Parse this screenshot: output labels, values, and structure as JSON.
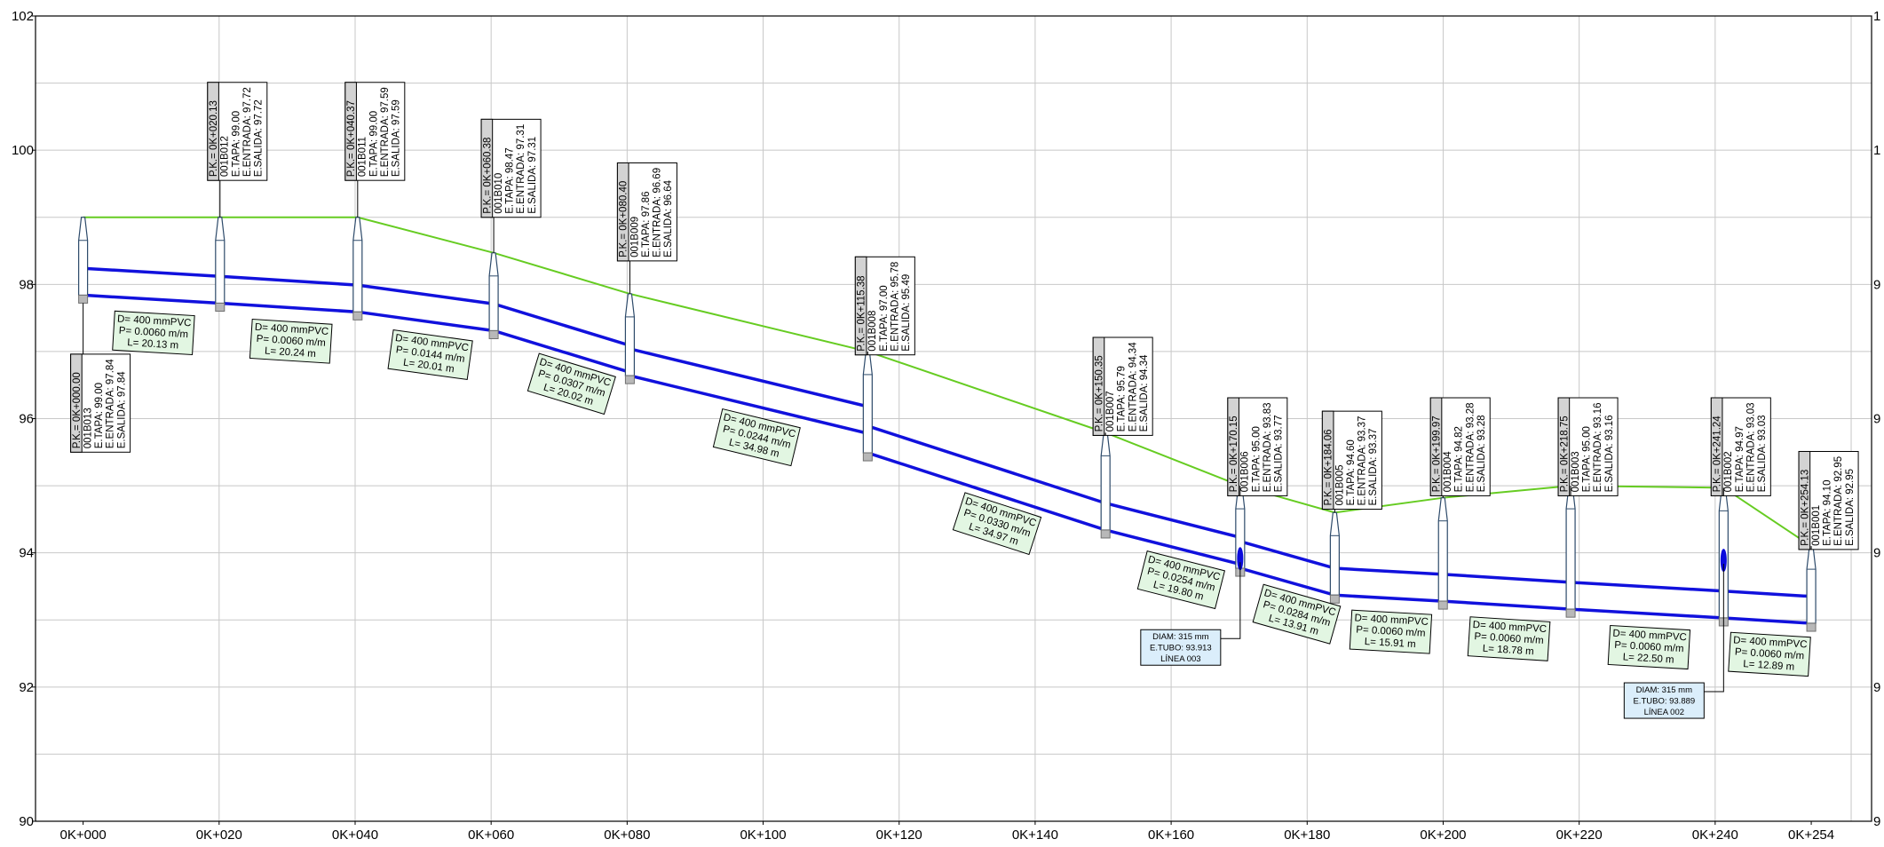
{
  "chart_data": {
    "type": "profile",
    "x_unit": "m",
    "ylim": [
      90,
      102
    ],
    "y_ticks": [
      90,
      92,
      94,
      96,
      98,
      100,
      102
    ],
    "y_tick_labels_left": [
      "90",
      "92",
      "94",
      "96",
      "98",
      "100",
      "102"
    ],
    "y_tick_labels_right": [
      "9",
      "9",
      "9",
      "9",
      "9",
      "1",
      "1"
    ],
    "x_range": [
      -7,
      263
    ],
    "x_ticks": [
      {
        "x": 0,
        "label": "0K+000"
      },
      {
        "x": 20,
        "label": "0K+020"
      },
      {
        "x": 40,
        "label": "0K+040"
      },
      {
        "x": 60,
        "label": "0K+060"
      },
      {
        "x": 80,
        "label": "0K+080"
      },
      {
        "x": 100,
        "label": "0K+100"
      },
      {
        "x": 120,
        "label": "0K+120"
      },
      {
        "x": 140,
        "label": "0K+140"
      },
      {
        "x": 160,
        "label": "0K+160"
      },
      {
        "x": 180,
        "label": "0K+180"
      },
      {
        "x": 200,
        "label": "0K+200"
      },
      {
        "x": 220,
        "label": "0K+220"
      },
      {
        "x": 240,
        "label": "0K+240"
      },
      {
        "x": 254.13,
        "label": "0K+254"
      }
    ],
    "manholes": [
      {
        "id": "001B013",
        "pk": 0.0,
        "tapa": 99.0,
        "entrada": 97.84,
        "salida": 97.84,
        "lines": [
          "P.K.= 0K+000.00",
          "001B013",
          "E.TAPA: 99.00",
          "E.ENTRADA: 97.84",
          "E.SALIDA: 97.84"
        ]
      },
      {
        "id": "001B012",
        "pk": 20.13,
        "tapa": 99.0,
        "entrada": 97.72,
        "salida": 97.72,
        "lines": [
          "P.K.= 0K+020.13",
          "001B012",
          "E.TAPA: 99.00",
          "E.ENTRADA: 97.72",
          "E.SALIDA: 97.72"
        ]
      },
      {
        "id": "001B011",
        "pk": 40.37,
        "tapa": 99.0,
        "entrada": 97.59,
        "salida": 97.59,
        "lines": [
          "P.K.= 0K+040.37",
          "001B011",
          "E.TAPA: 99.00",
          "E.ENTRADA: 97.59",
          "E.SALIDA: 97.59"
        ]
      },
      {
        "id": "001B010",
        "pk": 60.38,
        "tapa": 98.47,
        "entrada": 97.31,
        "salida": 97.31,
        "lines": [
          "P.K.= 0K+060.38",
          "001B010",
          "E.TAPA: 98.47",
          "E.ENTRADA: 97.31",
          "E.SALIDA: 97.31"
        ]
      },
      {
        "id": "001B009",
        "pk": 80.4,
        "tapa": 97.86,
        "entrada": 96.69,
        "salida": 96.64,
        "lines": [
          "P.K.= 0K+080.40",
          "001B009",
          "E.TAPA: 97.86",
          "E.ENTRADA: 96.69",
          "E.SALIDA: 96.64"
        ]
      },
      {
        "id": "001B008",
        "pk": 115.38,
        "tapa": 97.0,
        "entrada": 95.78,
        "salida": 95.49,
        "lines": [
          "P.K.= 0K+115.38",
          "001B008",
          "E.TAPA: 97.00",
          "E.ENTRADA: 95.78",
          "E.SALIDA: 95.49"
        ]
      },
      {
        "id": "001B007",
        "pk": 150.35,
        "tapa": 95.79,
        "entrada": 94.34,
        "salida": 94.34,
        "lines": [
          "P.K.= 0K+150.35",
          "001B007",
          "E.TAPA: 95.79",
          "E.ENTRADA: 94.34",
          "E.SALIDA: 94.34"
        ]
      },
      {
        "id": "001B006",
        "pk": 170.15,
        "tapa": 95.0,
        "entrada": 93.83,
        "salida": 93.77,
        "lines": [
          "P.K.= 0K+170.15",
          "001B006",
          "E.TAPA: 95.00",
          "E.ENTRADA: 93.83",
          "E.SALIDA: 93.77"
        ]
      },
      {
        "id": "001B005",
        "pk": 184.06,
        "tapa": 94.6,
        "entrada": 93.37,
        "salida": 93.37,
        "lines": [
          "P.K.= 0K+184.06",
          "001B005",
          "E.TAPA: 94.60",
          "E.ENTRADA: 93.37",
          "E.SALIDA: 93.37"
        ]
      },
      {
        "id": "001B004",
        "pk": 199.97,
        "tapa": 94.82,
        "entrada": 93.28,
        "salida": 93.28,
        "lines": [
          "P.K.= 0K+199.97",
          "001B004",
          "E.TAPA: 94.82",
          "E.ENTRADA: 93.28",
          "E.SALIDA: 93.28"
        ]
      },
      {
        "id": "001B003",
        "pk": 218.75,
        "tapa": 95.0,
        "entrada": 93.16,
        "salida": 93.16,
        "lines": [
          "P.K.= 0K+218.75",
          "001B003",
          "E.TAPA: 95.00",
          "E.ENTRADA: 93.16",
          "E.SALIDA: 93.16"
        ]
      },
      {
        "id": "001B002",
        "pk": 241.24,
        "tapa": 94.97,
        "entrada": 93.03,
        "salida": 93.03,
        "lines": [
          "P.K.= 0K+241.24",
          "001B002",
          "E.TAPA: 94.97",
          "E.ENTRADA: 93.03",
          "E.SALIDA: 93.03"
        ]
      },
      {
        "id": "001B001",
        "pk": 254.13,
        "tapa": 94.1,
        "entrada": 92.95,
        "salida": 92.95,
        "lines": [
          "P.K.= 0K+254.13",
          "001B001",
          "E.TAPA: 94.10",
          "E.ENTRADA: 92.95",
          "E.SALIDA: 92.95"
        ]
      }
    ],
    "pipe_segments": [
      {
        "from": "001B013",
        "to": "001B012",
        "lines": [
          "D= 400 mmPVC",
          "P= 0.0060 m/m",
          "L= 20.13 m"
        ]
      },
      {
        "from": "001B012",
        "to": "001B011",
        "lines": [
          "D= 400 mmPVC",
          "P= 0.0060 m/m",
          "L= 20.24 m"
        ]
      },
      {
        "from": "001B011",
        "to": "001B010",
        "lines": [
          "D= 400 mmPVC",
          "P= 0.0144 m/m",
          "L= 20.01 m"
        ]
      },
      {
        "from": "001B010",
        "to": "001B009",
        "lines": [
          "D= 400 mmPVC",
          "P= 0.0307 m/m",
          "L= 20.02 m"
        ]
      },
      {
        "from": "001B009",
        "to": "001B008",
        "lines": [
          "D= 400 mmPVC",
          "P= 0.0244 m/m",
          "L= 34.98 m"
        ]
      },
      {
        "from": "001B008",
        "to": "001B007",
        "lines": [
          "D= 400 mmPVC",
          "P= 0.0330 m/m",
          "L= 34.97 m"
        ]
      },
      {
        "from": "001B007",
        "to": "001B006",
        "lines": [
          "D= 400 mmPVC",
          "P= 0.0254 m/m",
          "L= 19.80 m"
        ]
      },
      {
        "from": "001B006",
        "to": "001B005",
        "lines": [
          "D= 400 mmPVC",
          "P= 0.0284 m/m",
          "L= 13.91 m"
        ]
      },
      {
        "from": "001B005",
        "to": "001B004",
        "lines": [
          "D= 400 mmPVC",
          "P= 0.0060 m/m",
          "L= 15.91 m"
        ]
      },
      {
        "from": "001B004",
        "to": "001B003",
        "lines": [
          "D= 400 mmPVC",
          "P= 0.0060 m/m",
          "L= 18.78 m"
        ]
      },
      {
        "from": "001B003",
        "to": "001B002",
        "lines": [
          "D= 400 mmPVC",
          "P= 0.0060 m/m",
          "L= 22.50 m"
        ]
      },
      {
        "from": "001B002",
        "to": "001B001",
        "lines": [
          "D= 400 mmPVC",
          "P= 0.0060 m/m",
          "L= 12.89 m"
        ]
      }
    ],
    "crossings": [
      {
        "pk": 170.15,
        "elevation": 93.913,
        "lines": [
          "DIAM: 315 mm",
          "E.TUBO: 93.913",
          "LÍNEA 003"
        ]
      },
      {
        "pk": 241.24,
        "elevation": 93.889,
        "lines": [
          "DIAM: 315 mm",
          "E.TUBO: 93.889",
          "LÍNEA 002"
        ]
      }
    ],
    "colors": {
      "ground": "#66cc22",
      "pipe": "#1111dd",
      "pipe_label_fill": "#e2f6e2",
      "crossing_fill": "#dbeefb",
      "crossing_mark": "#0b0bdd",
      "manhole": "#2d4a6a",
      "grid": "#c8c8c8",
      "label_header": "#d3d3d3"
    }
  }
}
